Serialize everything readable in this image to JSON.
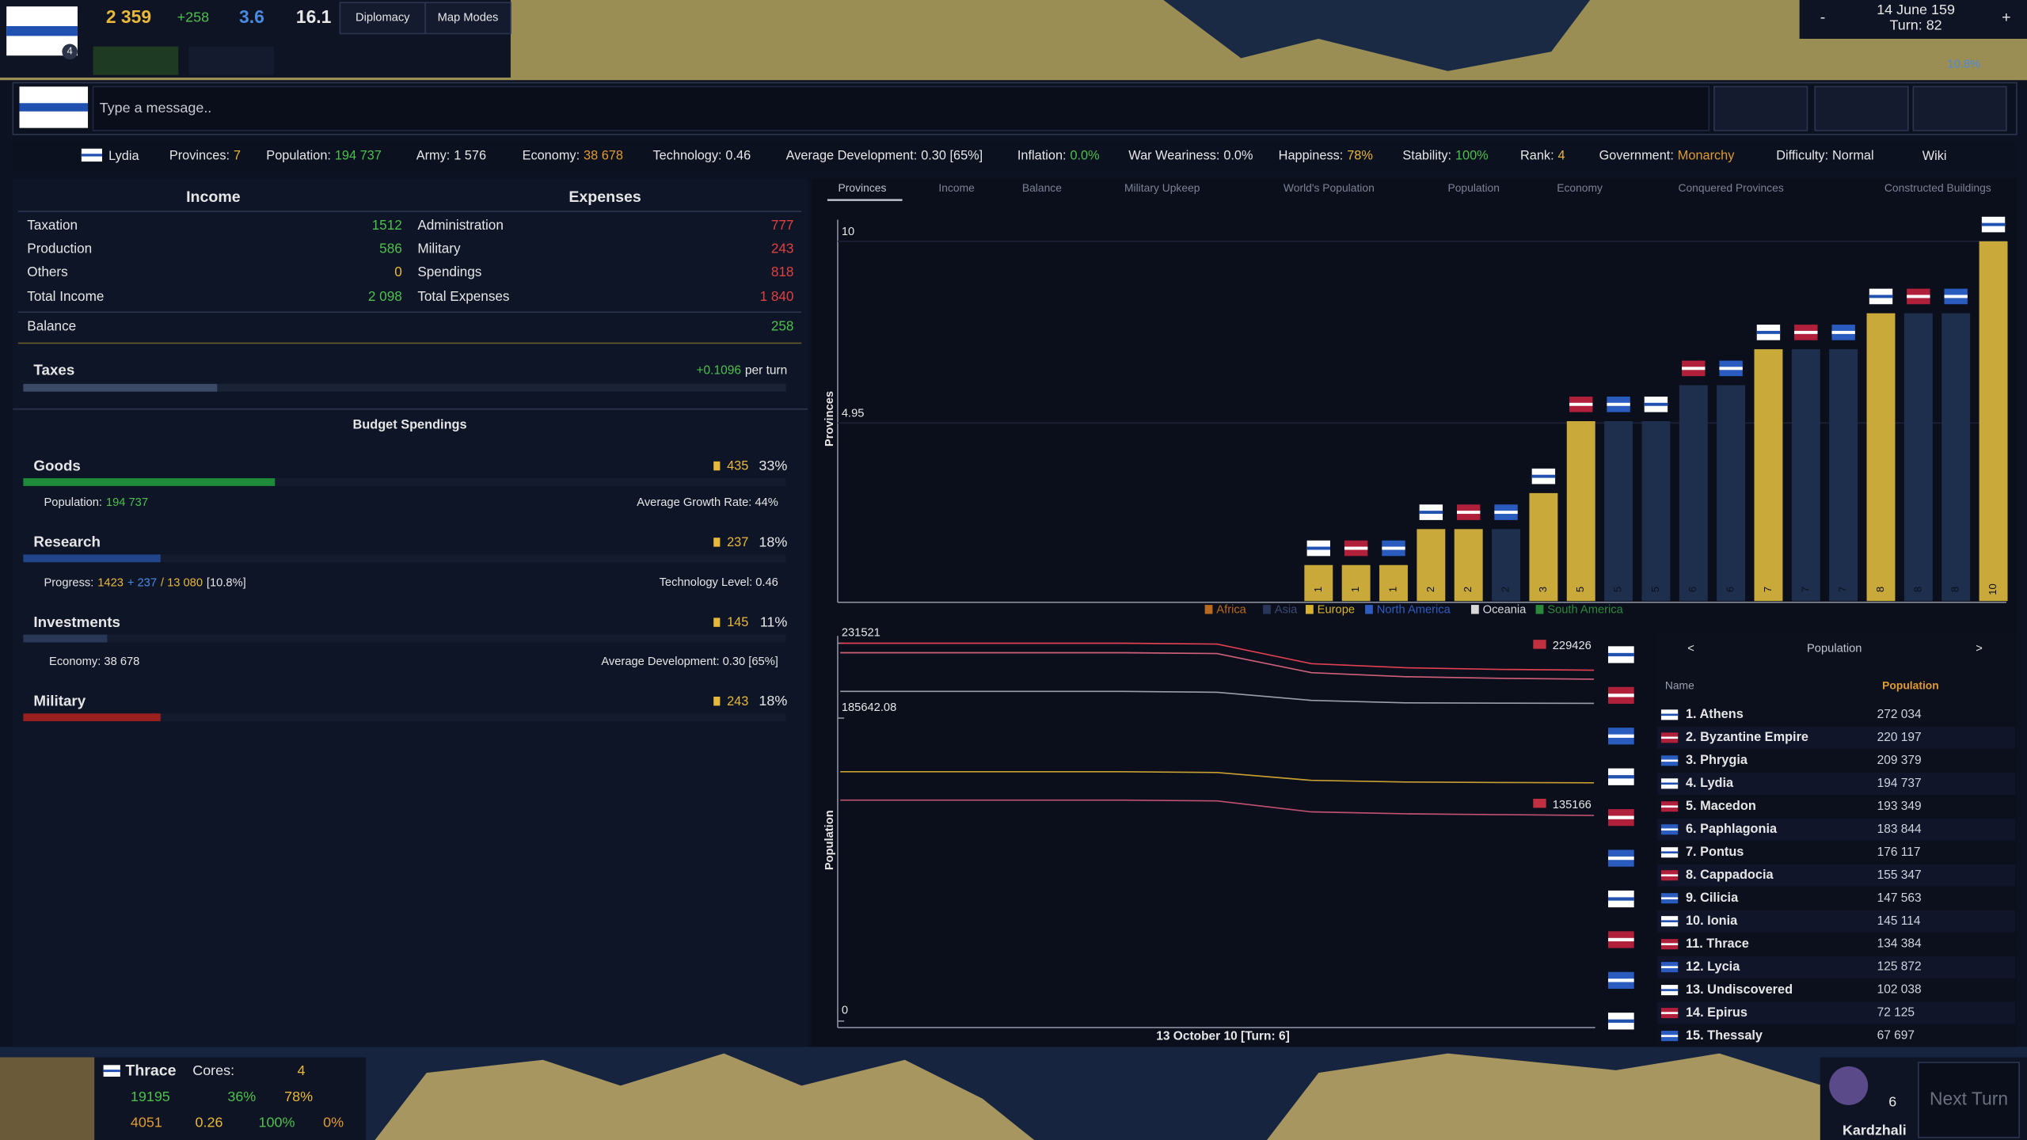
{
  "top_bar": {
    "gold": "2 359",
    "income": "+258",
    "manpower": "3.6",
    "prestige": "16.1",
    "badge": "4",
    "buttons": [
      "Diplomacy",
      "Map Modes"
    ],
    "date": "14 June 159",
    "turn": "Turn: 82",
    "zoom_out": "-",
    "zoom_in": "+",
    "zoom_level": "10.8%"
  },
  "chat": {
    "placeholder": "Type a message.."
  },
  "stats_bar": {
    "country": "Lydia",
    "items": [
      {
        "label": "Provinces:",
        "value": "7"
      },
      {
        "label": "Population:",
        "value": "194 737"
      },
      {
        "label": "Army:",
        "value": "1 576"
      },
      {
        "label": "Economy:",
        "value": "38 678"
      },
      {
        "label": "Technology:",
        "value": "0.46"
      },
      {
        "label": "Average Development:",
        "value": "0.30 [65%]"
      },
      {
        "label": "Inflation:",
        "value": "0.0%"
      },
      {
        "label": "War Weariness:",
        "value": "0.0%"
      },
      {
        "label": "Happiness:",
        "value": "78%"
      },
      {
        "label": "Stability:",
        "value": "100%"
      },
      {
        "label": "Rank:",
        "value": "4"
      },
      {
        "label": "Government:",
        "value": "Monarchy"
      },
      {
        "label": "Difficulty:",
        "value": "Normal"
      }
    ],
    "wiki": "Wiki"
  },
  "budget": {
    "income_header": "Income",
    "expenses_header": "Expenses",
    "rows": [
      {
        "income_label": "Taxation",
        "income_value": "1512",
        "expense_label": "Administration",
        "expense_value": "777"
      },
      {
        "income_label": "Production",
        "income_value": "586",
        "expense_label": "Military",
        "expense_value": "243"
      },
      {
        "income_label": "Others",
        "income_value": "0",
        "expense_label": "Spendings",
        "expense_value": "818"
      },
      {
        "income_label": "Total Income",
        "income_value": "2 098",
        "expense_label": "Total Expenses",
        "expense_value": "1 840"
      }
    ],
    "balance_label": "Balance",
    "balance_value": "258",
    "taxes_label": "Taxes",
    "taxes_rate": "+0.1096",
    "taxes_unit": "per turn"
  },
  "spendings": {
    "title": "Budget Spendings",
    "items": [
      {
        "name": "Goods",
        "amount": "435",
        "share": 33,
        "share_label": "33%",
        "left_label": "Population:",
        "left_value": "194 737",
        "right_text": "Average Growth Rate: 44%"
      },
      {
        "name": "Research",
        "amount": "237",
        "share": 18,
        "share_label": "18%",
        "left_label": "Progress:",
        "left_value": "1423",
        "left_extra": "+ 237",
        "left_total": "/ 13 080",
        "left_pct": "[10.8%]",
        "right_text": "Technology Level: 0.46"
      },
      {
        "name": "Investments",
        "amount": "145",
        "share": 11,
        "share_label": "11%",
        "left_label": "Economy: 38 678",
        "right_text": "Average Development: 0.30 [65%]"
      },
      {
        "name": "Military",
        "amount": "243",
        "share": 18,
        "share_label": "18%"
      }
    ]
  },
  "tabs": [
    "Provinces",
    "Income",
    "Balance",
    "Military Upkeep",
    "World's Population",
    "Population",
    "Economy",
    "Conquered Provinces",
    "Constructed Buildings"
  ],
  "chart_data": [
    {
      "type": "bar",
      "ylabel": "Provinces",
      "categories": [
        null,
        null,
        null,
        null,
        null,
        null,
        null,
        null,
        null,
        null,
        null,
        null,
        null,
        null,
        null,
        null,
        null,
        null,
        null
      ],
      "values": [
        1,
        1,
        1,
        2,
        2,
        2,
        3,
        5,
        5,
        5,
        6,
        6,
        7,
        7,
        7,
        8,
        8,
        8,
        10
      ],
      "colors": [
        "#c9a93a",
        "#c9a93a",
        "#c9a93a",
        "#c9a93a",
        "#c9a93a",
        "#1e2f4d",
        "#c9a93a",
        "#c9a93a",
        "#1e2f4d",
        "#1e2f4d",
        "#1e2f4d",
        "#1e2f4d",
        "#c9a93a",
        "#1e2f4d",
        "#1e2f4d",
        "#c9a93a",
        "#1e2f4d",
        "#1e2f4d",
        "#c9a93a"
      ],
      "ylim": [
        0,
        10.6
      ],
      "yticks": [
        4.95,
        10
      ],
      "legend": [
        {
          "name": "Africa",
          "color": "#b86a1e"
        },
        {
          "name": "Asia",
          "color": "#28365a"
        },
        {
          "name": "Europe",
          "color": "#d6b22e"
        },
        {
          "name": "North America",
          "color": "#2f5cc0"
        },
        {
          "name": "Oceania",
          "color": "#d8d8d8"
        },
        {
          "name": "South America",
          "color": "#2a8a3a"
        }
      ]
    },
    {
      "type": "line",
      "ylabel": "Population",
      "xlabel": "13 October 10 [Turn: 6]",
      "categories": [
        null,
        null,
        null,
        null,
        null,
        null,
        null,
        null,
        null
      ],
      "series": [
        {
          "color": "#e04050",
          "values": [
            231521,
            231521,
            231521,
            231521,
            231000,
            219000,
            216500,
            215500,
            215000
          ]
        },
        {
          "color": "#d0607a",
          "values": [
            225700,
            225700,
            225700,
            225700,
            225200,
            213500,
            211000,
            210000,
            209500
          ]
        },
        {
          "color": "#9aa0a8",
          "values": [
            202000,
            202000,
            202000,
            202000,
            201500,
            196500,
            195000,
            194800,
            194700
          ]
        },
        {
          "color": "#c8a030",
          "values": [
            152800,
            152800,
            152800,
            152800,
            152300,
            147500,
            146500,
            146200,
            146000
          ]
        },
        {
          "color": "#c05070",
          "values": [
            135400,
            135400,
            135400,
            135400,
            134900,
            128200,
            127000,
            126500,
            126000
          ]
        }
      ],
      "ylim": [
        0,
        236000
      ],
      "yticks": [
        0,
        185642.08,
        231521
      ],
      "end_labels": [
        "229426",
        "135166"
      ]
    }
  ],
  "ranking": {
    "prev": "<",
    "title": "Population",
    "next": ">",
    "columns": [
      "Name",
      "Population"
    ],
    "rows": [
      [
        "1. Athens",
        "272 034"
      ],
      [
        "2. Byzantine Empire",
        "220 197"
      ],
      [
        "3. Phrygia",
        "209 379"
      ],
      [
        "4. Lydia",
        "194 737"
      ],
      [
        "5. Macedon",
        "193 349"
      ],
      [
        "6. Paphlagonia",
        "183 844"
      ],
      [
        "7. Pontus",
        "176 117"
      ],
      [
        "8. Cappadocia",
        "155 347"
      ],
      [
        "9. Cilicia",
        "147 563"
      ],
      [
        "10. Ionia",
        "145 114"
      ],
      [
        "11. Thrace",
        "134 384"
      ],
      [
        "12. Lycia",
        "125 872"
      ],
      [
        "13. Undiscovered",
        "102 038"
      ],
      [
        "14. Epirus",
        "72 125"
      ],
      [
        "15. Thessaly",
        "67 697"
      ]
    ]
  },
  "province": {
    "name": "Thrace",
    "cores_label": "Cores:",
    "rank": "4",
    "population": "19195",
    "growth": "36%",
    "happiness": "78%",
    "income": "4051",
    "development": "0.26",
    "control": "100%",
    "unrest": "0%"
  },
  "bottom_right": {
    "count": "6",
    "next_turn": "Next Turn",
    "location": "Kardzhali"
  }
}
